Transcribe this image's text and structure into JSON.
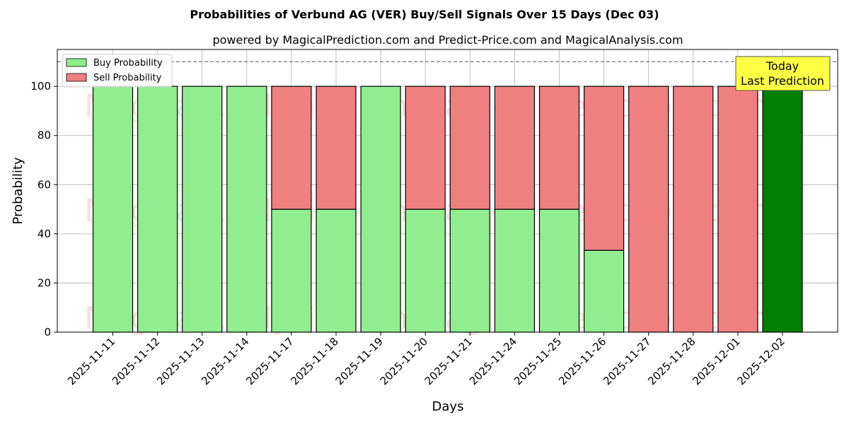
{
  "chart_data": {
    "type": "bar",
    "stacked": true,
    "title": "Probabilities of Verbund AG (VER) Buy/Sell Signals Over 15 Days (Dec 03)",
    "subtitle": "powered by MagicalPrediction.com and Predict-Price.com and MagicalAnalysis.com",
    "xlabel": "Days",
    "ylabel": "Probability",
    "ylim": [
      0,
      115
    ],
    "yticks": [
      0,
      20,
      40,
      60,
      80,
      100
    ],
    "reference_line": 110,
    "grid": true,
    "legend_position": "top-left",
    "categories": [
      "2025-11-11",
      "2025-11-12",
      "2025-11-13",
      "2025-11-14",
      "2025-11-17",
      "2025-11-18",
      "2025-11-19",
      "2025-11-20",
      "2025-11-21",
      "2025-11-24",
      "2025-11-25",
      "2025-11-26",
      "2025-11-27",
      "2025-11-28",
      "2025-12-01",
      "2025-12-02"
    ],
    "series": [
      {
        "name": "Buy Probability",
        "color": "#90ee90",
        "values": [
          100,
          100,
          100,
          100,
          50,
          50,
          100,
          50,
          50,
          50,
          50,
          33.3,
          0,
          0,
          0,
          100
        ]
      },
      {
        "name": "Sell Probability",
        "color": "#f08080",
        "values": [
          0,
          0,
          0,
          0,
          50,
          50,
          0,
          50,
          50,
          50,
          50,
          66.7,
          100,
          100,
          100,
          0
        ]
      }
    ],
    "highlight": {
      "index": 15,
      "color": "#008000"
    },
    "annotation": {
      "line1": "Today",
      "line2": "Last Prediction",
      "color": "#ffff44"
    },
    "watermarks": [
      "MagicalAnalysis.com",
      "MagicalPrediction.com"
    ]
  }
}
